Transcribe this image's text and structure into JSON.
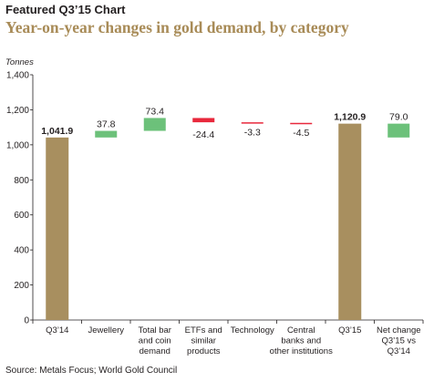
{
  "header": {
    "title": "Featured Q3’15 Chart",
    "subtitle": "Year-on-year changes in gold demand, by category"
  },
  "source": "Source: Metals Focus; World Gold Council",
  "colors": {
    "total_bar": "#a88f5f",
    "increase": "#6cc17a",
    "decrease": "#e8283c",
    "text": "#231f20",
    "subtitle": "#a88b57"
  },
  "chart_data": {
    "type": "bar",
    "subtype": "waterfall",
    "ylabel": "Tonnes",
    "ylim": [
      0,
      1400
    ],
    "yticks": [
      "0",
      "200",
      "400",
      "600",
      "800",
      "1,000",
      "1,200",
      "1,400"
    ],
    "grid": false,
    "categories": [
      [
        "Q3’14"
      ],
      [
        "Jewellery"
      ],
      [
        "Total bar",
        "and coin",
        "demand"
      ],
      [
        "ETFs and",
        "similar",
        "products"
      ],
      [
        "Technology"
      ],
      [
        "Central",
        "banks and",
        "other institutions"
      ],
      [
        "Q3’15"
      ],
      [
        "Net change",
        "Q3’15 vs",
        "Q3’14"
      ]
    ],
    "bars": [
      {
        "kind": "total",
        "start": 0,
        "end": 1041.9,
        "label": "1,041.9"
      },
      {
        "kind": "increase",
        "start": 1041.9,
        "end": 1079.7,
        "label": "37.8"
      },
      {
        "kind": "increase",
        "start": 1079.7,
        "end": 1153.1,
        "label": "73.4"
      },
      {
        "kind": "decrease",
        "start": 1153.1,
        "end": 1128.7,
        "label": "-24.4"
      },
      {
        "kind": "decrease",
        "start": 1128.7,
        "end": 1125.4,
        "label": "-3.3"
      },
      {
        "kind": "decrease",
        "start": 1125.4,
        "end": 1120.9,
        "label": "-4.5"
      },
      {
        "kind": "total",
        "start": 0,
        "end": 1120.9,
        "label": "1,120.9"
      },
      {
        "kind": "increase",
        "start": 1041.9,
        "end": 1120.9,
        "label": "79.0"
      }
    ]
  }
}
